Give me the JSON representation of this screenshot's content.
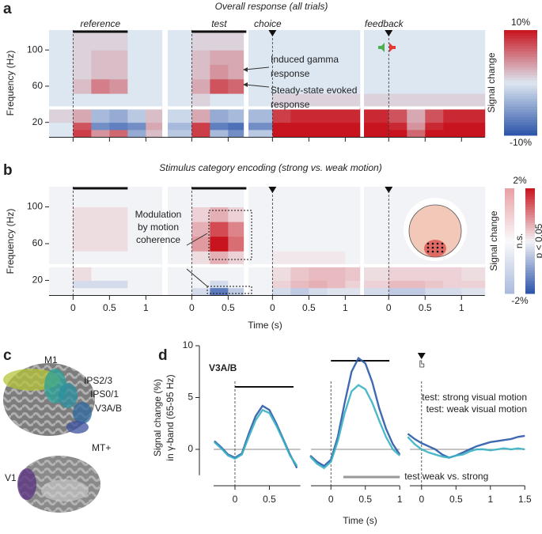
{
  "panel_labels": [
    "a",
    "b",
    "c",
    "d"
  ],
  "chart_data": [
    {
      "type": "heatmap",
      "title": "Overall response (all trials)",
      "ylabel": "Frequency (Hz)",
      "ylim": [
        4,
        122
      ],
      "yticks": [
        20,
        60,
        100
      ],
      "freq_edges": [
        4,
        12,
        20,
        36,
        52,
        68,
        84,
        100,
        122
      ],
      "clim": [
        -10,
        10
      ],
      "colors": {
        "neg": "#2a52a8",
        "mid": "#dde7f1",
        "pos": "#c8141e"
      },
      "cbar_label": "Signal change",
      "cbar_ticks": [
        {
          "value": 10,
          "label": "10%"
        },
        {
          "value": -10,
          "label": "-10%"
        }
      ],
      "xtick_labels": false,
      "annotations": [
        [
          "Induced gamma",
          "response"
        ],
        [
          "Steady-state evoked",
          "response"
        ]
      ],
      "segments": [
        {
          "label": "reference",
          "bar": [
            0,
            0.75
          ],
          "xlim": [
            -0.33,
            1.22
          ],
          "xticks": [
            0,
            0.5,
            1
          ],
          "time_edges": [
            -0.33,
            0,
            0.25,
            0.5,
            0.75,
            1,
            1.22
          ],
          "z": [
            [
              0,
              8,
              4,
              6,
              -4,
              2
            ],
            [
              0,
              7,
              -6,
              -7,
              -6,
              3
            ],
            [
              1,
              3,
              -3,
              -4,
              -2,
              2
            ],
            [
              0,
              0,
              0,
              0,
              0,
              0
            ],
            [
              0,
              2,
              5,
              4,
              0,
              0
            ],
            [
              0,
              1,
              2,
              2,
              0,
              0
            ],
            [
              0,
              1,
              2,
              2,
              0,
              0
            ],
            [
              0,
              1,
              1,
              1,
              0,
              0
            ]
          ]
        },
        {
          "label": "test",
          "bar": [
            0,
            0.75
          ],
          "xlim": [
            -0.33,
            0.71
          ],
          "xticks": [
            0,
            0.5
          ],
          "time_edges": [
            -0.33,
            0,
            0.25,
            0.5,
            0.71
          ],
          "z": [
            [
              -2,
              8,
              -3,
              -6
            ],
            [
              -3,
              8,
              -7,
              -8
            ],
            [
              -1,
              3,
              -4,
              -3
            ],
            [
              0,
              1,
              0,
              0
            ],
            [
              0,
              3,
              7,
              6
            ],
            [
              0,
              2,
              4,
              3
            ],
            [
              0,
              2,
              3,
              3
            ],
            [
              0,
              1,
              1,
              1
            ]
          ]
        },
        {
          "label": "choice",
          "event": true,
          "xlim": [
            -0.33,
            1.2
          ],
          "xticks": [
            0,
            0.5,
            1
          ],
          "time_edges": [
            -0.33,
            0,
            0.25,
            0.5,
            0.75,
            1,
            1.2
          ],
          "z": [
            [
              -2,
              10,
              10,
              10,
              10,
              10
            ],
            [
              -6,
              10,
              10,
              10,
              10,
              10
            ],
            [
              -3,
              8,
              9,
              9,
              9,
              9
            ],
            [
              0,
              1,
              1,
              1,
              1,
              1
            ],
            [
              0,
              0,
              0,
              0,
              0,
              0
            ],
            [
              0,
              0,
              0,
              0,
              0,
              0
            ],
            [
              0,
              0,
              0,
              0,
              0,
              0
            ],
            [
              0,
              0,
              0,
              0,
              0,
              0
            ]
          ]
        },
        {
          "label": "feedback",
          "event": true,
          "xlim": [
            -0.34,
            1.32
          ],
          "xticks": [
            0,
            0.5,
            1
          ],
          "time_edges": [
            -0.34,
            0,
            0.25,
            0.5,
            0.75,
            1,
            1.32
          ],
          "z": [
            [
              10,
              10,
              6,
              10,
              10,
              10
            ],
            [
              10,
              9,
              4,
              9,
              10,
              10
            ],
            [
              9,
              7,
              3,
              7,
              9,
              9
            ],
            [
              1,
              1,
              1,
              1,
              1,
              1
            ],
            [
              0,
              0,
              0,
              0,
              0,
              0
            ],
            [
              0,
              0,
              0,
              0,
              0,
              0
            ],
            [
              0,
              0,
              0,
              0,
              0,
              0
            ],
            [
              0,
              0,
              0,
              0,
              0,
              0
            ]
          ]
        }
      ]
    },
    {
      "type": "heatmap",
      "title": "Stimulus category encoding (strong vs. weak motion)",
      "ylabel": "Frequency (Hz)",
      "xlabel": "Time (s)",
      "ylim": [
        4,
        122
      ],
      "yticks": [
        20,
        60,
        100
      ],
      "freq_edges": [
        4,
        12,
        20,
        36,
        52,
        68,
        84,
        100,
        122
      ],
      "clim": [
        -2,
        2
      ],
      "colors": {
        "neg": "#2a52a8",
        "mid": "#f2f3f6",
        "pos": "#c8141e"
      },
      "cbar_label": "Signal change",
      "cbar_ticks": [
        {
          "value": 2,
          "label": "2%"
        },
        {
          "value": -2,
          "label": "-2%"
        }
      ],
      "cbar_labels": [
        "n.s.",
        "p < 0.05"
      ],
      "xtick_labels": true,
      "annotations": [
        [
          "Modulation",
          "by motion",
          "coherence"
        ]
      ],
      "segments": [
        {
          "bar": [
            0,
            0.75
          ],
          "xlim": [
            -0.33,
            1.22
          ],
          "xticks": [
            0,
            0.5,
            1
          ],
          "time_edges": [
            -0.33,
            0,
            0.25,
            0.5,
            0.75,
            1,
            1.22
          ],
          "z": [
            [
              0,
              0,
              0,
              0,
              0,
              0
            ],
            [
              0,
              -0.3,
              -0.3,
              -0.3,
              0,
              0
            ],
            [
              0,
              0.2,
              0,
              0,
              0,
              0
            ],
            [
              0,
              0,
              0,
              0,
              0,
              0
            ],
            [
              0,
              0.2,
              0.2,
              0.2,
              0,
              0
            ],
            [
              0,
              0.2,
              0.2,
              0.2,
              0,
              0
            ],
            [
              0,
              0.2,
              0.2,
              0.2,
              0,
              0
            ],
            [
              0,
              0,
              0,
              0,
              0,
              0
            ]
          ]
        },
        {
          "bar": [
            0,
            0.75
          ],
          "xlim": [
            -0.33,
            0.71
          ],
          "xticks": [
            0,
            0.5
          ],
          "time_edges": [
            -0.33,
            0,
            0.25,
            0.5,
            0.71
          ],
          "z": [
            [
              0,
              -0.3,
              -1.5,
              -0.5
            ],
            [
              0,
              0,
              -0.3,
              0
            ],
            [
              0,
              0,
              0,
              0
            ],
            [
              0,
              0.2,
              0.6,
              0.3
            ],
            [
              0,
              0.8,
              2,
              1.2
            ],
            [
              0,
              0.6,
              1.5,
              1
            ],
            [
              0,
              0.3,
              0.6,
              0.3
            ],
            [
              0,
              0,
              0,
              0
            ]
          ]
        },
        {
          "event": true,
          "xlim": [
            -0.33,
            1.2
          ],
          "xticks": [
            0,
            0.5,
            1
          ],
          "time_edges": [
            -0.33,
            0,
            0.25,
            0.5,
            0.75,
            1,
            1.2
          ],
          "z": [
            [
              0,
              -0.3,
              -0.5,
              -0.3,
              -0.2,
              -0.2
            ],
            [
              0,
              0.3,
              0.5,
              0.6,
              0.5,
              0.3
            ],
            [
              0,
              0.2,
              0.4,
              0.5,
              0.5,
              0.4
            ],
            [
              0,
              0.1,
              0.1,
              0.1,
              0.1,
              0
            ],
            [
              0,
              0,
              0,
              0,
              0,
              0
            ],
            [
              0,
              0,
              0,
              0,
              0,
              0
            ],
            [
              0,
              0,
              0,
              0,
              0,
              0
            ],
            [
              0,
              0,
              0,
              0,
              0,
              0
            ]
          ]
        },
        {
          "event": true,
          "xlim": [
            -0.34,
            1.32
          ],
          "xticks": [
            0,
            0.5,
            1
          ],
          "time_edges": [
            -0.34,
            0,
            0.25,
            0.5,
            0.75,
            1,
            1.32
          ],
          "z": [
            [
              -0.3,
              -0.5,
              -0.5,
              -0.3,
              -0.3,
              -0.2
            ],
            [
              0.3,
              0.5,
              0.5,
              0.4,
              0.3,
              0.3
            ],
            [
              0.2,
              0.3,
              0.3,
              0.3,
              0.3,
              0.2
            ],
            [
              0,
              0,
              0,
              0,
              0,
              0
            ],
            [
              0,
              0,
              0,
              0,
              0,
              0
            ],
            [
              0,
              0,
              0,
              0,
              0,
              0
            ],
            [
              0,
              0,
              0,
              0,
              0,
              0
            ],
            [
              0,
              0,
              0,
              0,
              0,
              0
            ]
          ]
        }
      ]
    },
    {
      "type": "line",
      "title": "V3A/B",
      "ylabel": [
        "Signal change (%)",
        "in γ-band (65-95 Hz)"
      ],
      "xlabel": "Time (s)",
      "ylim": [
        -2.5,
        10
      ],
      "yticks": [
        0,
        5,
        10
      ],
      "significance": {
        "label": "test weak vs. strong",
        "range": [
          0.18,
          1.0
        ]
      },
      "segments": [
        {
          "bar": [
            0,
            0.85
          ],
          "xlim": [
            -0.31,
            0.95
          ],
          "xticks": [
            0,
            0.5
          ],
          "x": [
            -0.3,
            -0.2,
            -0.1,
            0,
            0.1,
            0.2,
            0.3,
            0.4,
            0.5,
            0.6,
            0.7,
            0.8,
            0.9
          ]
        },
        {
          "bar": [
            0,
            0.85
          ],
          "xlim": [
            -0.29,
            1.0
          ],
          "xticks": [
            0,
            0.5,
            1
          ],
          "x": [
            -0.3,
            -0.2,
            -0.1,
            0,
            0.1,
            0.2,
            0.3,
            0.4,
            0.5,
            0.6,
            0.7,
            0.8,
            0.9,
            1.0
          ]
        },
        {
          "event": true,
          "xlim": [
            -0.17,
            1.5
          ],
          "xticks": [
            0,
            0.5,
            1,
            1.5
          ],
          "x": [
            -0.2,
            -0.1,
            0,
            0.1,
            0.2,
            0.3,
            0.4,
            0.5,
            0.6,
            0.7,
            0.8,
            0.9,
            1.0,
            1.1,
            1.2,
            1.3,
            1.4,
            1.5
          ]
        }
      ],
      "series": [
        {
          "name": "test: strong visual motion",
          "color": "#2a5aa8",
          "values": [
            [
              0.8,
              0.2,
              -0.5,
              -0.8,
              -0.4,
              1.5,
              3.2,
              4.2,
              3.8,
              2.5,
              1.0,
              -0.5,
              -1.8
            ],
            [
              -0.6,
              -1.2,
              -1.6,
              -1.0,
              1.2,
              4.5,
              7.5,
              8.8,
              8.3,
              6.5,
              4.0,
              2.0,
              0.5,
              -0.5
            ],
            [
              1.5,
              1.0,
              0.6,
              0.3,
              0.0,
              -0.5,
              -0.8,
              -0.6,
              -0.3,
              0.0,
              0.3,
              0.5,
              0.7,
              0.8,
              0.9,
              1.0,
              1.2,
              1.3
            ]
          ]
        },
        {
          "name": "test: weak visual motion",
          "color": "#3bb3c3",
          "values": [
            [
              0.7,
              0.1,
              -0.6,
              -0.9,
              -0.5,
              1.2,
              2.8,
              3.8,
              3.5,
              2.3,
              0.9,
              -0.6,
              -1.6
            ],
            [
              -0.7,
              -1.4,
              -1.8,
              -1.2,
              0.8,
              3.5,
              5.6,
              6.2,
              5.8,
              4.5,
              2.8,
              1.2,
              0.0,
              -0.6
            ],
            [
              1.2,
              0.5,
              0.0,
              -0.3,
              -0.5,
              -0.7,
              -0.8,
              -0.6,
              -0.5,
              -0.2,
              0.0,
              0.0,
              -0.1,
              0.0,
              0.1,
              0.0,
              0.1,
              0.0
            ]
          ]
        }
      ]
    }
  ],
  "panel_c": {
    "regions": [
      {
        "label": "M1",
        "color": "#b5c43a"
      },
      {
        "label": "IPS2/3",
        "color": "#2aa39a"
      },
      {
        "label": "IPS0/1",
        "color": "#2a8fa0"
      },
      {
        "label": "V3A/B",
        "color": "#2f6aa0"
      },
      {
        "label": "MT+",
        "color": "#3c4f9e"
      },
      {
        "label": "V1",
        "color": "#5a2d80"
      }
    ]
  }
}
